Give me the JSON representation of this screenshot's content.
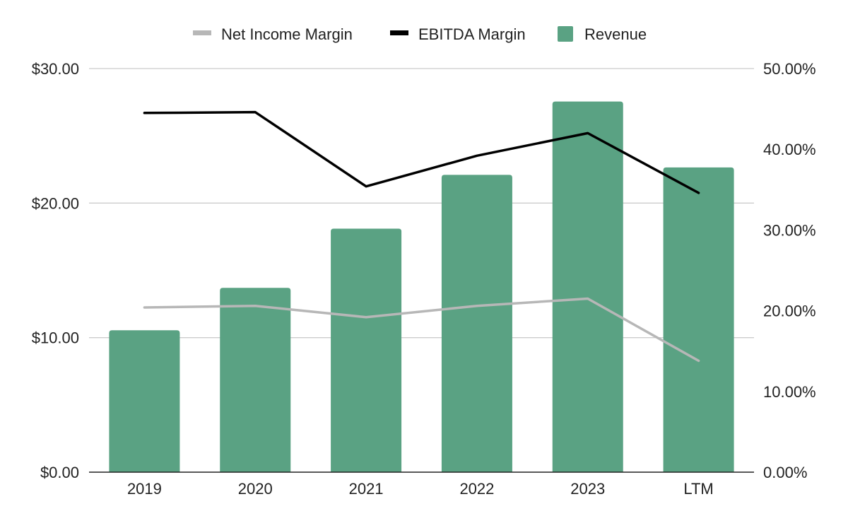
{
  "chart_data": {
    "type": "bar",
    "categories": [
      "2019",
      "2020",
      "2021",
      "2022",
      "2023",
      "LTM"
    ],
    "series": [
      {
        "name": "Revenue",
        "type": "bar",
        "axis": "left",
        "values": [
          10.55,
          13.7,
          18.1,
          22.1,
          27.55,
          22.65
        ]
      },
      {
        "name": "EBITDA Margin",
        "type": "line",
        "axis": "right",
        "values": [
          44.5,
          44.6,
          35.4,
          39.2,
          42.0,
          34.6
        ]
      },
      {
        "name": "Net Income Margin",
        "type": "line",
        "axis": "right",
        "values": [
          20.4,
          20.6,
          19.2,
          20.6,
          21.5,
          13.8
        ]
      }
    ],
    "legend_order": [
      "Net Income Margin",
      "EBITDA Margin",
      "Revenue"
    ],
    "legend_position": "top",
    "y_left": {
      "lim": [
        0,
        30
      ],
      "ticks": [
        0,
        10,
        20,
        30
      ],
      "tick_labels": [
        "$0.00",
        "$10.00",
        "$20.00",
        "$30.00"
      ]
    },
    "y_right": {
      "lim": [
        0,
        50
      ],
      "ticks": [
        0,
        10,
        20,
        30,
        40,
        50
      ],
      "tick_labels": [
        "0.00%",
        "10.00%",
        "20.00%",
        "30.00%",
        "40.00%",
        "50.00%"
      ]
    },
    "title": "",
    "xlabel": "",
    "ylabel": "",
    "grid": true,
    "colors": {
      "Revenue": "#5aa283",
      "EBITDA Margin": "#000000",
      "Net Income Margin": "#b7b7b7",
      "gridline": "#cccccc",
      "axis": "#222222"
    }
  }
}
